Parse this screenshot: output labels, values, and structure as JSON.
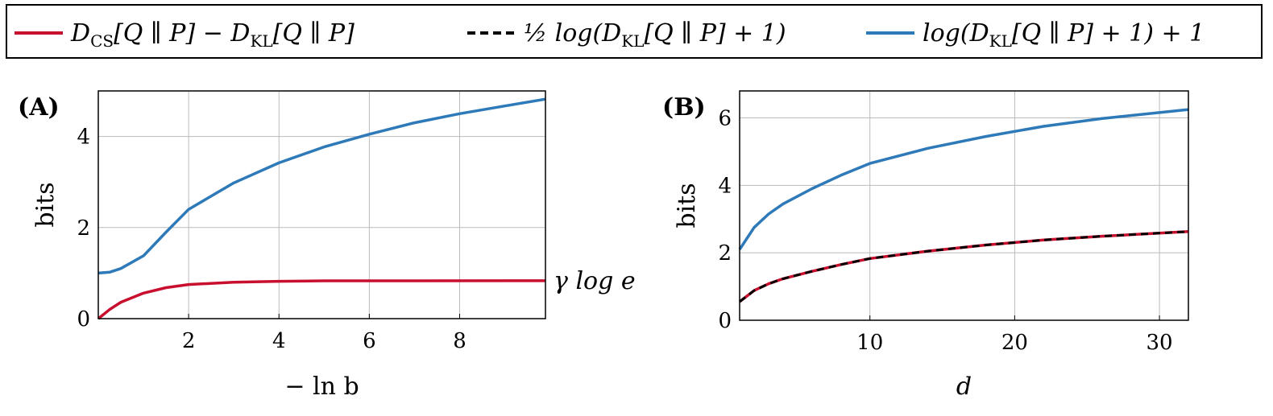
{
  "legend": {
    "placement": "top",
    "entries": [
      {
        "parts": [
          "D",
          "CS",
          "[Q ∥ P] − D",
          "KL",
          "[Q ∥ P]"
        ],
        "color": "#c8102e",
        "dash": false
      },
      {
        "parts": [
          "½ log(D",
          "KL",
          "[Q ∥ P] + 1)"
        ],
        "color": "#000000",
        "dash": true
      },
      {
        "parts": [
          "log(D",
          "KL",
          "[Q ∥ P] + 1) + 1"
        ],
        "color": "#2e7ab8",
        "dash": false
      }
    ]
  },
  "chart_data": [
    {
      "type": "line",
      "panel_label": "(A)",
      "xlabel": "− ln b",
      "ylabel": "bits",
      "xlim": [
        0,
        9.9
      ],
      "ylim": [
        0,
        5
      ],
      "xticks": [
        2,
        4,
        6,
        8
      ],
      "yticks": [
        0,
        2,
        4
      ],
      "grid": true,
      "annotation": "γ log e",
      "series": [
        {
          "legend_index": 2,
          "color": "#2e7ab8",
          "x": [
            0,
            0.25,
            0.5,
            1,
            1.5,
            2,
            3,
            4,
            5,
            6,
            7,
            8,
            9,
            9.9
          ],
          "y": [
            1.0,
            1.02,
            1.1,
            1.38,
            1.9,
            2.4,
            2.98,
            3.42,
            3.77,
            4.05,
            4.3,
            4.5,
            4.67,
            4.82
          ]
        },
        {
          "legend_index": 0,
          "color": "#c8102e",
          "x": [
            0,
            0.25,
            0.5,
            1,
            1.5,
            2,
            3,
            4,
            5,
            9.9
          ],
          "y": [
            0,
            0.2,
            0.36,
            0.56,
            0.68,
            0.75,
            0.8,
            0.82,
            0.83,
            0.833
          ]
        }
      ]
    },
    {
      "type": "line",
      "panel_label": "(B)",
      "xlabel": "d",
      "ylabel": "bits",
      "xlim": [
        1,
        32
      ],
      "ylim": [
        0,
        6.8
      ],
      "xticks": [
        10,
        20,
        30
      ],
      "yticks": [
        0,
        2,
        4,
        6
      ],
      "grid": true,
      "series": [
        {
          "legend_index": 2,
          "color": "#2e7ab8",
          "x": [
            1,
            2,
            3,
            4,
            6,
            8,
            10,
            14,
            18,
            22,
            26,
            32
          ],
          "y": [
            2.1,
            2.75,
            3.15,
            3.45,
            3.9,
            4.3,
            4.65,
            5.1,
            5.45,
            5.75,
            5.98,
            6.25
          ]
        },
        {
          "legend_index": 0,
          "color": "#c8102e",
          "x": [
            1,
            2,
            3,
            4,
            6,
            8,
            10,
            14,
            18,
            22,
            26,
            32
          ],
          "y": [
            0.55,
            0.88,
            1.08,
            1.23,
            1.45,
            1.65,
            1.83,
            2.05,
            2.23,
            2.38,
            2.49,
            2.63
          ]
        },
        {
          "legend_index": 1,
          "color": "#000000",
          "dash": true,
          "x": [
            1,
            2,
            3,
            4,
            6,
            8,
            10,
            14,
            18,
            22,
            26,
            32
          ],
          "y": [
            0.55,
            0.88,
            1.08,
            1.23,
            1.45,
            1.65,
            1.83,
            2.05,
            2.23,
            2.38,
            2.49,
            2.63
          ]
        }
      ]
    }
  ]
}
